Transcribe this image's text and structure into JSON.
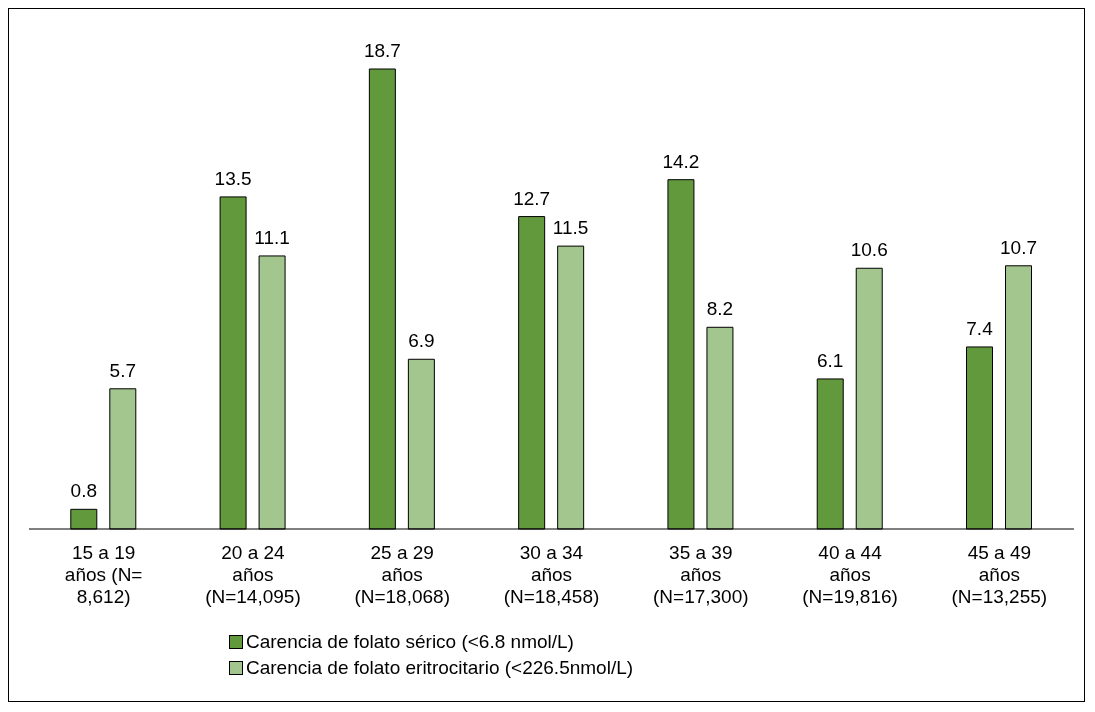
{
  "chart_data": {
    "type": "bar",
    "categories": [
      "15 a 19 años (N= 8,612)",
      "20 a 24 años (N=14,095)",
      "25 a 29 años (N=18,068)",
      "30 a 34 años (N=18,458)",
      "35 a 39 años (N=17,300)",
      "40 a 44 años (N=19,816)",
      "45 a 49 años (N=13,255)"
    ],
    "series": [
      {
        "name": "Carencia de folato sérico (<6.8 nmol/L)",
        "color": "#63993d",
        "values": [
          0.8,
          13.5,
          18.7,
          12.7,
          14.2,
          6.1,
          7.4
        ]
      },
      {
        "name": "Carencia de folato eritrocitario (<226.5nmol/L)",
        "color": "#a3c68f",
        "values": [
          5.7,
          11.1,
          6.9,
          11.5,
          8.2,
          10.6,
          10.7
        ]
      }
    ],
    "data_labels": true,
    "legend": "bottom",
    "grid": false
  }
}
